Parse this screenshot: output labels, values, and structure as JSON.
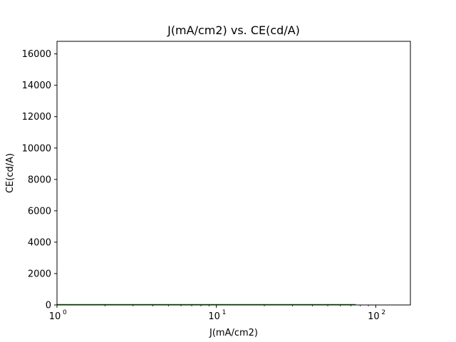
{
  "chart_data": {
    "type": "line",
    "title": "J(mA/cm2) vs. CE(cd/A)",
    "xlabel": "J(mA/cm2)",
    "ylabel": "CE(cd/A)",
    "xscale": "log",
    "xlim": [
      1,
      165
    ],
    "ylim": [
      0,
      16800
    ],
    "x_ticks": [
      {
        "value": 1,
        "base": "10",
        "exp": "0"
      },
      {
        "value": 10,
        "base": "10",
        "exp": "1"
      },
      {
        "value": 100,
        "base": "10",
        "exp": "2"
      }
    ],
    "y_ticks": [
      {
        "value": 0,
        "label": "0"
      },
      {
        "value": 2000,
        "label": "2000"
      },
      {
        "value": 4000,
        "label": "4000"
      },
      {
        "value": 6000,
        "label": "6000"
      },
      {
        "value": 8000,
        "label": "8000"
      },
      {
        "value": 10000,
        "label": "10000"
      },
      {
        "value": 12000,
        "label": "12000"
      },
      {
        "value": 14000,
        "label": "14000"
      },
      {
        "value": 16000,
        "label": "16000"
      }
    ],
    "grid": false,
    "legend": "none",
    "series": [
      {
        "color": "#008000",
        "x": [
          1,
          2,
          5,
          10,
          20,
          40,
          75
        ],
        "y": [
          0,
          0,
          0,
          0,
          0,
          0,
          0
        ]
      }
    ]
  }
}
